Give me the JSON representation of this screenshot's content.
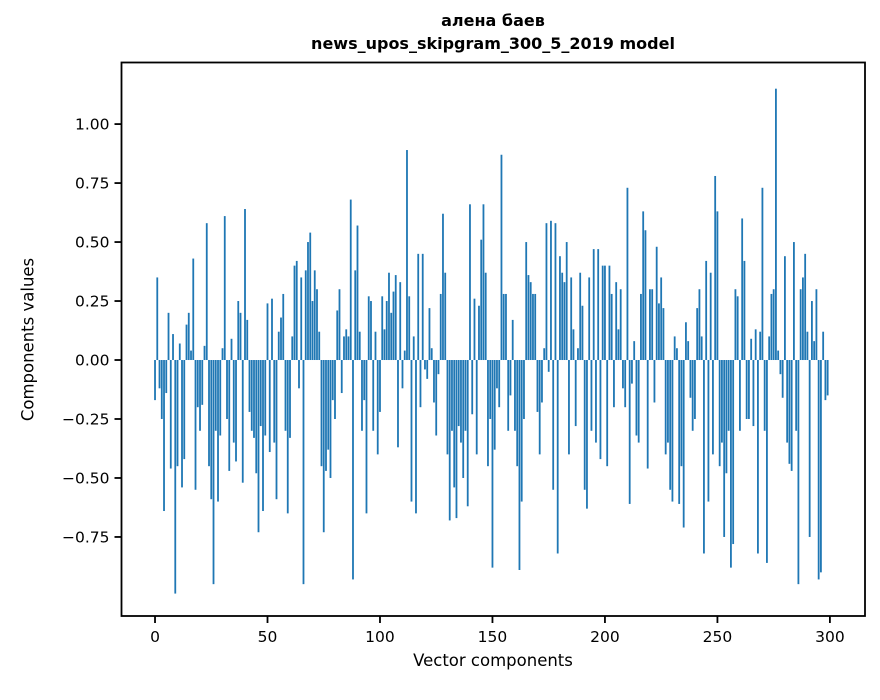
{
  "title": {
    "line1": "алена баев",
    "line2": "news_upos_skipgram_300_5_2019 model"
  },
  "chart_data": {
    "type": "bar",
    "title": "алена баев\nnews_upos_skipgram_300_5_2019 model",
    "xlabel": "Vector components",
    "ylabel": "Components values",
    "x_ticks": [
      0,
      50,
      100,
      150,
      200,
      250,
      300
    ],
    "y_ticks": [
      1.0,
      0.75,
      0.5,
      0.25,
      0.0,
      -0.25,
      -0.5,
      -0.75
    ],
    "xlim": [
      -14.9,
      315.6
    ],
    "ylim": [
      -1.085,
      1.261
    ],
    "grid": false,
    "legend": "none",
    "bar_color": "#1f77b4",
    "spine_color": "#000000",
    "values": [
      -0.17,
      0.35,
      -0.12,
      -0.25,
      -0.64,
      -0.14,
      0.2,
      -0.46,
      0.11,
      -0.99,
      -0.45,
      0.07,
      -0.54,
      -0.42,
      0.15,
      0.2,
      0.04,
      0.43,
      -0.55,
      -0.2,
      -0.3,
      -0.19,
      0.06,
      0.58,
      -0.45,
      -0.59,
      -0.95,
      -0.3,
      -0.6,
      -0.32,
      0.05,
      0.61,
      -0.25,
      -0.47,
      0.09,
      -0.35,
      -0.43,
      0.25,
      0.2,
      -0.52,
      0.64,
      0.17,
      -0.22,
      -0.3,
      -0.33,
      -0.48,
      -0.73,
      -0.28,
      -0.64,
      -0.32,
      0.24,
      -0.39,
      0.26,
      -0.35,
      -0.59,
      0.12,
      0.18,
      0.28,
      -0.3,
      -0.65,
      -0.33,
      0.1,
      0.4,
      0.42,
      -0.12,
      0.35,
      -0.95,
      0.38,
      0.5,
      0.54,
      0.25,
      0.38,
      0.3,
      0.12,
      -0.45,
      -0.73,
      -0.47,
      -0.38,
      -0.5,
      -0.17,
      -0.25,
      0.21,
      0.3,
      -0.14,
      0.1,
      0.13,
      0.1,
      0.68,
      -0.93,
      0.38,
      0.57,
      0.12,
      -0.3,
      -0.17,
      -0.65,
      0.27,
      0.25,
      -0.3,
      0.12,
      -0.4,
      -0.22,
      0.27,
      0.13,
      0.25,
      0.37,
      0.2,
      0.29,
      0.36,
      -0.37,
      0.33,
      -0.12,
      0.04,
      0.89,
      0.27,
      -0.6,
      0.1,
      -0.65,
      0.45,
      -0.2,
      0.45,
      -0.04,
      -0.08,
      0.22,
      0.05,
      -0.18,
      -0.32,
      -0.06,
      0.28,
      0.62,
      0.37,
      -0.4,
      -0.68,
      -0.3,
      -0.54,
      -0.67,
      -0.28,
      -0.35,
      -0.5,
      -0.3,
      -0.62,
      0.66,
      -0.23,
      0.26,
      -0.4,
      0.23,
      0.51,
      0.66,
      0.37,
      -0.45,
      -0.25,
      -0.88,
      -0.38,
      -0.12,
      -0.2,
      0.87,
      0.28,
      0.28,
      -0.3,
      -0.15,
      0.17,
      -0.3,
      -0.45,
      -0.89,
      -0.6,
      -0.25,
      0.5,
      0.36,
      0.33,
      0.28,
      0.28,
      -0.22,
      -0.4,
      -0.18,
      0.05,
      0.58,
      -0.05,
      0.59,
      -0.55,
      0.58,
      -0.82,
      0.44,
      0.37,
      0.33,
      0.5,
      -0.4,
      0.35,
      0.13,
      -0.28,
      0.05,
      0.37,
      0.23,
      -0.55,
      -0.63,
      0.35,
      -0.3,
      0.47,
      -0.35,
      0.47,
      -0.42,
      0.4,
      0.4,
      -0.45,
      0.4,
      0.28,
      -0.2,
      0.33,
      0.13,
      0.3,
      -0.12,
      -0.2,
      0.73,
      -0.61,
      -0.1,
      0.08,
      -0.32,
      -0.35,
      0.28,
      0.63,
      0.55,
      -0.46,
      0.3,
      0.3,
      -0.18,
      0.48,
      0.24,
      0.35,
      0.22,
      -0.4,
      -0.35,
      -0.55,
      -0.6,
      0.1,
      0.05,
      -0.61,
      -0.45,
      -0.71,
      0.16,
      0.08,
      -0.16,
      -0.3,
      -0.25,
      0.22,
      0.3,
      0.1,
      -0.82,
      0.42,
      -0.6,
      0.37,
      -0.4,
      0.78,
      0.63,
      -0.45,
      -0.35,
      -0.75,
      -0.48,
      -0.3,
      -0.88,
      -0.78,
      0.3,
      0.27,
      -0.3,
      0.6,
      0.42,
      -0.25,
      -0.25,
      0.09,
      -0.28,
      0.13,
      -0.82,
      0.12,
      0.73,
      -0.3,
      -0.86,
      0.1,
      0.28,
      0.3,
      1.15,
      0.04,
      -0.06,
      -0.16,
      0.44,
      -0.35,
      -0.44,
      -0.47,
      0.5,
      -0.3,
      -0.95,
      0.3,
      0.35,
      0.45,
      0.12,
      -0.75,
      0.25,
      0.08,
      0.3,
      -0.93,
      -0.9,
      0.12,
      -0.17,
      -0.15
    ]
  }
}
